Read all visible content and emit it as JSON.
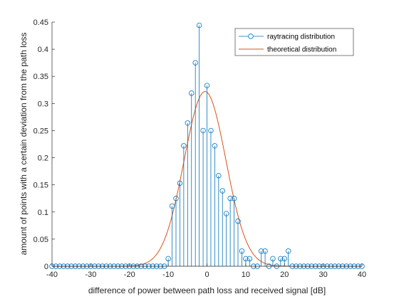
{
  "chart_data": {
    "type": "stem",
    "xlabel": "difference of power between path loss and received signal [dB]",
    "ylabel": "amount of points with a certain deviation from the path loss",
    "xlim": [
      -40,
      40
    ],
    "ylim": [
      0,
      0.45
    ],
    "xticks": [
      "-40",
      "-30",
      "-20",
      "-10",
      "0",
      "10",
      "20",
      "30",
      "40"
    ],
    "yticks": [
      "0",
      "0.05",
      "0.1",
      "0.15",
      "0.2",
      "0.25",
      "0.3",
      "0.35",
      "0.4",
      "0.45"
    ],
    "grid": false,
    "legend_position": "top-right",
    "colors": {
      "stem": "#0072BD",
      "curve": "#D95319",
      "axis": "#262626"
    },
    "series": [
      {
        "name": "raytracing distribution",
        "style": "stem",
        "x": [
          -40,
          -39,
          -38,
          -37,
          -36,
          -35,
          -34,
          -33,
          -32,
          -31,
          -30,
          -29,
          -28,
          -27,
          -26,
          -25,
          -24,
          -23,
          -22,
          -21,
          -20,
          -19,
          -18,
          -17,
          -16,
          -15,
          -14,
          -13,
          -12,
          -11,
          -10,
          -9,
          -8,
          -7,
          -6,
          -5,
          -4,
          -3,
          -2,
          -1,
          0,
          1,
          2,
          3,
          4,
          5,
          6,
          7,
          8,
          9,
          10,
          11,
          12,
          13,
          14,
          15,
          16,
          17,
          18,
          19,
          20,
          21,
          22,
          23,
          24,
          25,
          26,
          27,
          28,
          29,
          30,
          31,
          32,
          33,
          34,
          35,
          36,
          37,
          38,
          39,
          40
        ],
        "y": [
          0,
          0,
          0,
          0,
          0,
          0,
          0,
          0,
          0,
          0,
          0,
          0,
          0,
          0,
          0,
          0,
          0,
          0,
          0,
          0,
          0,
          0,
          0,
          0,
          0,
          0,
          0,
          0,
          0,
          0,
          0.014,
          0.111,
          0.125,
          0.153,
          0.222,
          0.264,
          0.319,
          0.375,
          0.444,
          0.25,
          0.333,
          0.25,
          0.222,
          0.167,
          0.139,
          0.097,
          0.125,
          0.125,
          0.083,
          0.028,
          0.014,
          0.014,
          0,
          0,
          0.028,
          0.028,
          0,
          0.014,
          0,
          0.014,
          0.014,
          0.028,
          0,
          0,
          0,
          0,
          0,
          0,
          0,
          0,
          0,
          0,
          0,
          0,
          0,
          0,
          0,
          0,
          0,
          0,
          0
        ]
      },
      {
        "name": "theoretical distribution",
        "style": "line",
        "mean": -0.5,
        "std_db": 5.4,
        "peak": 0.322
      }
    ]
  }
}
